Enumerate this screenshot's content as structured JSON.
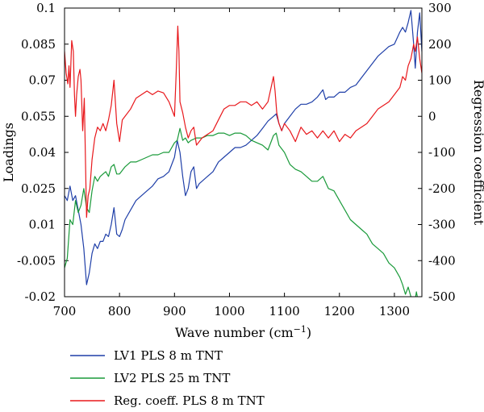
{
  "chart_data": {
    "type": "line",
    "xlabel": "Wave number (cm",
    "xlabel_sup": "−1",
    "xlabel_close": ")",
    "ylabel_left": "Loadings",
    "ylabel_right": "Regression coefficient",
    "xlim": [
      700,
      1350
    ],
    "ylim_left": [
      -0.02,
      0.1
    ],
    "ylim_right": [
      -500,
      300
    ],
    "x_ticks": [
      700,
      800,
      900,
      1000,
      1100,
      1200,
      1300
    ],
    "x_tick_labels": [
      "700",
      "800",
      "900",
      "1000",
      "1100",
      "1200",
      "1300"
    ],
    "y_left_ticks": [
      -0.02,
      -0.005,
      0.01,
      0.025,
      0.04,
      0.055,
      0.07,
      0.085,
      0.1
    ],
    "y_left_tick_labels": [
      "-0.02",
      "-0.005",
      "0.01",
      "0.025",
      "0.04",
      "0.055",
      "0.07",
      "0.085",
      "0.1"
    ],
    "y_right_ticks": [
      -500,
      -400,
      -300,
      -200,
      -100,
      0,
      100,
      200,
      300
    ],
    "y_right_tick_labels": [
      "-500",
      "-400",
      "-300",
      "-200",
      "-100",
      "0",
      "100",
      "200",
      "300"
    ],
    "legend_position": "below",
    "series": [
      {
        "name": "LV1 PLS 8 m TNT",
        "color": "#1f3fa8",
        "axis": "left",
        "x": [
          700,
          705,
          710,
          715,
          720,
          725,
          730,
          735,
          740,
          745,
          750,
          755,
          760,
          765,
          770,
          775,
          780,
          785,
          790,
          795,
          800,
          805,
          810,
          820,
          830,
          840,
          850,
          860,
          870,
          880,
          890,
          900,
          905,
          910,
          915,
          920,
          925,
          930,
          935,
          940,
          945,
          950,
          960,
          970,
          980,
          990,
          1000,
          1010,
          1020,
          1030,
          1040,
          1050,
          1060,
          1070,
          1080,
          1085,
          1090,
          1095,
          1100,
          1110,
          1120,
          1130,
          1140,
          1150,
          1160,
          1170,
          1175,
          1180,
          1190,
          1200,
          1210,
          1220,
          1230,
          1240,
          1250,
          1260,
          1270,
          1280,
          1290,
          1300,
          1310,
          1315,
          1320,
          1325,
          1330,
          1335,
          1338,
          1342,
          1346,
          1350
        ],
        "values": [
          0.022,
          0.02,
          0.026,
          0.02,
          0.022,
          0.016,
          0.01,
          0.0,
          -0.015,
          -0.01,
          -0.002,
          0.002,
          0.0,
          0.003,
          0.003,
          0.006,
          0.005,
          0.01,
          0.017,
          0.006,
          0.005,
          0.008,
          0.012,
          0.016,
          0.02,
          0.022,
          0.024,
          0.026,
          0.029,
          0.03,
          0.032,
          0.038,
          0.045,
          0.04,
          0.03,
          0.022,
          0.025,
          0.032,
          0.034,
          0.025,
          0.027,
          0.028,
          0.03,
          0.032,
          0.036,
          0.038,
          0.04,
          0.042,
          0.042,
          0.043,
          0.045,
          0.047,
          0.05,
          0.053,
          0.055,
          0.056,
          0.052,
          0.049,
          0.052,
          0.055,
          0.058,
          0.06,
          0.06,
          0.061,
          0.063,
          0.066,
          0.062,
          0.063,
          0.063,
          0.065,
          0.065,
          0.067,
          0.068,
          0.071,
          0.074,
          0.077,
          0.08,
          0.082,
          0.084,
          0.085,
          0.09,
          0.092,
          0.09,
          0.094,
          0.099,
          0.085,
          0.075,
          0.09,
          0.098,
          0.082
        ]
      },
      {
        "name": "LV2 PLS 25 m TNT",
        "color": "#1a9a3a",
        "axis": "left",
        "x": [
          700,
          705,
          710,
          715,
          720,
          725,
          730,
          735,
          740,
          745,
          750,
          755,
          760,
          765,
          770,
          775,
          780,
          785,
          790,
          795,
          800,
          810,
          820,
          830,
          840,
          850,
          860,
          870,
          880,
          890,
          900,
          905,
          910,
          915,
          920,
          925,
          930,
          940,
          950,
          960,
          970,
          980,
          990,
          1000,
          1010,
          1020,
          1030,
          1040,
          1050,
          1060,
          1070,
          1080,
          1085,
          1090,
          1100,
          1110,
          1120,
          1130,
          1140,
          1150,
          1160,
          1170,
          1180,
          1190,
          1200,
          1210,
          1220,
          1230,
          1240,
          1250,
          1260,
          1270,
          1280,
          1290,
          1300,
          1310,
          1315,
          1320,
          1325,
          1330,
          1335,
          1340,
          1345,
          1350
        ],
        "values": [
          -0.008,
          -0.004,
          0.012,
          0.01,
          0.02,
          0.015,
          0.018,
          0.025,
          0.017,
          0.015,
          0.024,
          0.03,
          0.028,
          0.03,
          0.031,
          0.032,
          0.03,
          0.034,
          0.035,
          0.031,
          0.031,
          0.034,
          0.036,
          0.036,
          0.037,
          0.038,
          0.039,
          0.039,
          0.04,
          0.04,
          0.044,
          0.045,
          0.05,
          0.045,
          0.046,
          0.044,
          0.045,
          0.046,
          0.046,
          0.047,
          0.047,
          0.048,
          0.048,
          0.047,
          0.048,
          0.048,
          0.047,
          0.045,
          0.044,
          0.043,
          0.041,
          0.047,
          0.048,
          0.043,
          0.04,
          0.035,
          0.033,
          0.032,
          0.03,
          0.028,
          0.028,
          0.03,
          0.025,
          0.024,
          0.02,
          0.016,
          0.012,
          0.01,
          0.008,
          0.006,
          0.002,
          0.0,
          -0.002,
          -0.006,
          -0.008,
          -0.012,
          -0.015,
          -0.019,
          -0.016,
          -0.02,
          -0.025,
          -0.018,
          -0.024,
          -0.02
        ]
      },
      {
        "name": "Reg. coeff. PLS 8 m TNT",
        "color": "#e8181c",
        "axis": "right",
        "x": [
          700,
          703,
          706,
          708,
          710,
          713,
          716,
          718,
          720,
          722,
          725,
          728,
          730,
          733,
          736,
          740,
          743,
          746,
          750,
          755,
          760,
          765,
          770,
          775,
          780,
          785,
          790,
          795,
          800,
          805,
          810,
          820,
          830,
          840,
          850,
          860,
          870,
          880,
          890,
          895,
          900,
          903,
          906,
          908,
          910,
          915,
          920,
          925,
          930,
          935,
          940,
          945,
          950,
          960,
          970,
          980,
          990,
          1000,
          1010,
          1020,
          1030,
          1040,
          1050,
          1060,
          1070,
          1080,
          1083,
          1086,
          1090,
          1095,
          1100,
          1110,
          1120,
          1130,
          1140,
          1150,
          1160,
          1170,
          1180,
          1190,
          1200,
          1210,
          1220,
          1230,
          1240,
          1250,
          1260,
          1270,
          1280,
          1290,
          1300,
          1310,
          1315,
          1320,
          1325,
          1330,
          1335,
          1338,
          1342,
          1346,
          1350
        ],
        "values": [
          180,
          120,
          90,
          140,
          80,
          210,
          180,
          60,
          0,
          60,
          110,
          130,
          100,
          -40,
          50,
          -280,
          -220,
          -200,
          -120,
          -60,
          -30,
          -40,
          -20,
          -40,
          -10,
          30,
          100,
          -20,
          -70,
          -10,
          0,
          20,
          50,
          60,
          70,
          60,
          70,
          65,
          40,
          20,
          0,
          120,
          250,
          180,
          40,
          10,
          -30,
          -60,
          -40,
          -30,
          -80,
          -70,
          -60,
          -50,
          -40,
          -10,
          20,
          30,
          30,
          40,
          40,
          30,
          40,
          20,
          40,
          110,
          70,
          10,
          -20,
          -40,
          -20,
          -40,
          -70,
          -30,
          -50,
          -40,
          -60,
          -40,
          -60,
          -40,
          -70,
          -50,
          -60,
          -40,
          -30,
          -20,
          0,
          20,
          30,
          40,
          60,
          80,
          110,
          100,
          140,
          160,
          200,
          180,
          220,
          160,
          120
        ]
      }
    ]
  }
}
